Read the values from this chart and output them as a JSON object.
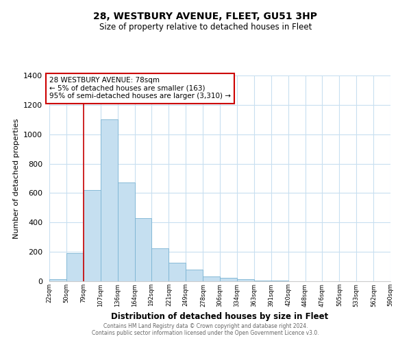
{
  "title": "28, WESTBURY AVENUE, FLEET, GU51 3HP",
  "subtitle": "Size of property relative to detached houses in Fleet",
  "xlabel": "Distribution of detached houses by size in Fleet",
  "ylabel": "Number of detached properties",
  "bar_color": "#c5dff0",
  "bar_edge_color": "#7ab3d3",
  "annotation_box_color": "#cc0000",
  "annotation_lines": [
    "28 WESTBURY AVENUE: 78sqm",
    "← 5% of detached houses are smaller (163)",
    "95% of semi-detached houses are larger (3,310) →"
  ],
  "property_line_x": 79,
  "bin_edges": [
    22,
    50,
    79,
    107,
    136,
    164,
    192,
    221,
    249,
    278,
    306,
    334,
    363,
    391,
    420,
    448,
    476,
    505,
    533,
    562,
    590
  ],
  "bin_counts": [
    15,
    190,
    620,
    1100,
    670,
    430,
    225,
    125,
    80,
    35,
    25,
    15,
    5,
    3,
    2,
    1,
    0,
    0,
    0,
    0
  ],
  "tick_labels": [
    "22sqm",
    "50sqm",
    "79sqm",
    "107sqm",
    "136sqm",
    "164sqm",
    "192sqm",
    "221sqm",
    "249sqm",
    "278sqm",
    "306sqm",
    "334sqm",
    "363sqm",
    "391sqm",
    "420sqm",
    "448sqm",
    "476sqm",
    "505sqm",
    "533sqm",
    "562sqm",
    "590sqm"
  ],
  "ylim": [
    0,
    1400
  ],
  "yticks": [
    0,
    200,
    400,
    600,
    800,
    1000,
    1200,
    1400
  ],
  "footer_lines": [
    "Contains HM Land Registry data © Crown copyright and database right 2024.",
    "Contains public sector information licensed under the Open Government Licence v3.0."
  ],
  "background_color": "#ffffff",
  "grid_color": "#c8dff0"
}
